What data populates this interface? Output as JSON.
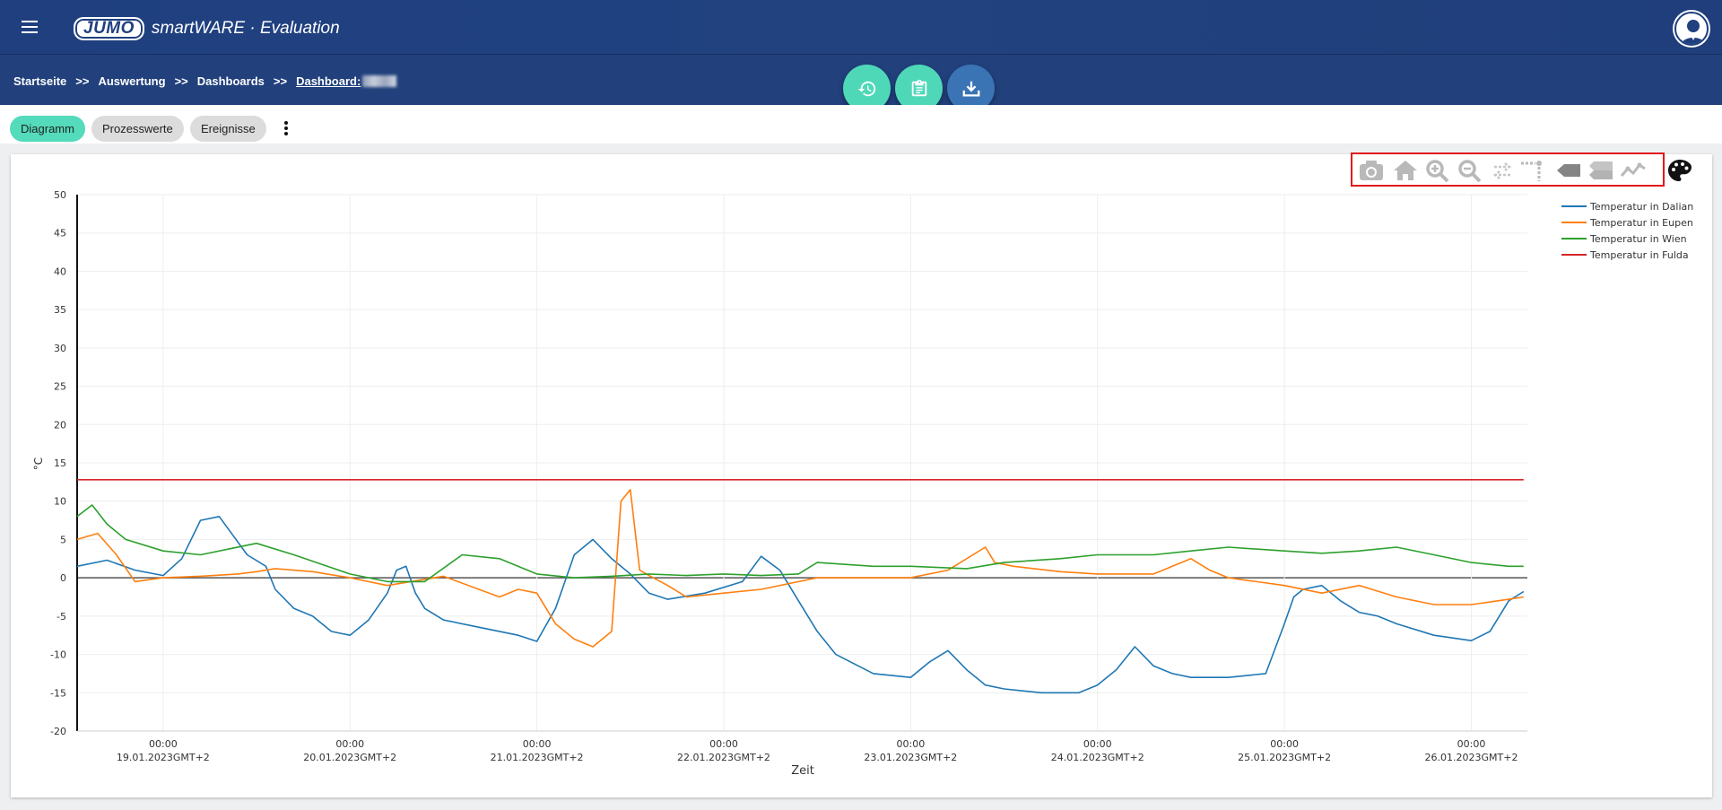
{
  "header": {
    "brand_logo": "JUMO",
    "product_name": "smartWARE · Evaluation",
    "icons": {
      "menu": "menu-icon",
      "user": "user-avatar-icon"
    }
  },
  "breadcrumb": {
    "items": [
      "Startseite",
      "Auswertung",
      "Dashboards"
    ],
    "current": "Dashboard:",
    "separator": ">>"
  },
  "fab_buttons": [
    "history-icon",
    "clipboard-icon",
    "download-icon"
  ],
  "tabs": [
    {
      "label": "Diagramm",
      "active": true
    },
    {
      "label": "Prozesswerte",
      "active": false
    },
    {
      "label": "Ereignisse",
      "active": false
    }
  ],
  "toolbar_icons": [
    "camera-icon",
    "home-icon",
    "zoom-in-icon",
    "zoom-out-icon",
    "compare-icon",
    "spike-lines-icon",
    "closest-hover-icon",
    "compare-hover-icon",
    "toggle-lines-icon",
    "palette-icon"
  ],
  "colors": {
    "accent": "#53dbbb",
    "header": "#21407c",
    "highlight": "#e1181b"
  },
  "chart_data": {
    "type": "line",
    "xlabel": "Zeit",
    "ylabel": "°C",
    "ylim": [
      -20,
      50
    ],
    "yticks": [
      50,
      45,
      40,
      35,
      30,
      25,
      20,
      15,
      10,
      5,
      0,
      -5,
      -10,
      -15,
      -20
    ],
    "xticks": [
      {
        "time": "00:00",
        "date": "19.01.2023GMT+2"
      },
      {
        "time": "00:00",
        "date": "20.01.2023GMT+2"
      },
      {
        "time": "00:00",
        "date": "21.01.2023GMT+2"
      },
      {
        "time": "00:00",
        "date": "22.01.2023GMT+2"
      },
      {
        "time": "00:00",
        "date": "23.01.2023GMT+2"
      },
      {
        "time": "00:00",
        "date": "24.01.2023GMT+2"
      },
      {
        "time": "00:00",
        "date": "25.01.2023GMT+2"
      },
      {
        "time": "00:00",
        "date": "26.01.2023GMT+2"
      }
    ],
    "x_range_days": [
      -0.46,
      7.3
    ],
    "legend_position": "top-right",
    "grid": true,
    "series": [
      {
        "name": "Temperatur in Dalian",
        "color": "#1f77b4",
        "x": [
          -0.46,
          -0.3,
          -0.15,
          0.0,
          0.1,
          0.2,
          0.3,
          0.45,
          0.55,
          0.6,
          0.7,
          0.8,
          0.9,
          1.0,
          1.1,
          1.2,
          1.25,
          1.3,
          1.35,
          1.4,
          1.5,
          1.7,
          1.9,
          2.0,
          2.1,
          2.2,
          2.3,
          2.4,
          2.5,
          2.6,
          2.7,
          2.9,
          3.1,
          3.2,
          3.3,
          3.4,
          3.5,
          3.6,
          3.8,
          4.0,
          4.1,
          4.2,
          4.3,
          4.4,
          4.5,
          4.7,
          4.9,
          5.0,
          5.1,
          5.2,
          5.3,
          5.4,
          5.5,
          5.7,
          5.9,
          6.0,
          6.05,
          6.1,
          6.2,
          6.3,
          6.4,
          6.5,
          6.6,
          6.8,
          7.0,
          7.1,
          7.2,
          7.28
        ],
        "y": [
          1.5,
          2.3,
          1.0,
          0.3,
          2.5,
          7.5,
          8.0,
          3.0,
          1.5,
          -1.5,
          -4.0,
          -5.0,
          -7.0,
          -7.5,
          -5.5,
          -2.0,
          1.0,
          1.5,
          -2.0,
          -4.0,
          -5.5,
          -6.5,
          -7.5,
          -8.3,
          -4.0,
          3.0,
          5.0,
          2.5,
          0.5,
          -2.0,
          -2.8,
          -2.0,
          -0.5,
          2.8,
          1.0,
          -3.0,
          -7.0,
          -10.0,
          -12.5,
          -13.0,
          -11.0,
          -9.5,
          -12.0,
          -14.0,
          -14.5,
          -15.0,
          -15.0,
          -14.0,
          -12.0,
          -9.0,
          -11.5,
          -12.5,
          -13.0,
          -13.0,
          -12.5,
          -6.0,
          -2.5,
          -1.5,
          -1.0,
          -3.0,
          -4.5,
          -5.0,
          -6.0,
          -7.5,
          -8.2,
          -7.0,
          -3.0,
          -1.8
        ]
      },
      {
        "name": "Temperatur in Eupen",
        "color": "#ff7f0e",
        "x": [
          -0.46,
          -0.35,
          -0.25,
          -0.15,
          0.0,
          0.2,
          0.4,
          0.5,
          0.6,
          0.8,
          1.0,
          1.2,
          1.5,
          1.8,
          1.9,
          2.0,
          2.1,
          2.2,
          2.3,
          2.4,
          2.45,
          2.5,
          2.55,
          2.6,
          2.7,
          2.8,
          3.0,
          3.2,
          3.5,
          3.8,
          4.0,
          4.2,
          4.4,
          4.45,
          4.55,
          4.8,
          5.0,
          5.3,
          5.5,
          5.6,
          5.7,
          6.0,
          6.2,
          6.4,
          6.6,
          6.8,
          7.0,
          7.2,
          7.28
        ],
        "y": [
          5.0,
          5.8,
          3.0,
          -0.5,
          0.0,
          0.2,
          0.5,
          0.8,
          1.2,
          0.8,
          0.0,
          -1.0,
          0.2,
          -2.5,
          -1.5,
          -2.0,
          -6.0,
          -8.0,
          -9.0,
          -7.0,
          10.0,
          11.5,
          1.0,
          0.3,
          -1.0,
          -2.5,
          -2.0,
          -1.5,
          0.0,
          0.0,
          0.0,
          1.0,
          4.0,
          2.0,
          1.5,
          0.8,
          0.5,
          0.5,
          2.5,
          1.0,
          0.0,
          -1.0,
          -2.0,
          -1.0,
          -2.5,
          -3.5,
          -3.5,
          -2.8,
          -2.5
        ]
      },
      {
        "name": "Temperatur in Wien",
        "color": "#2ca02c",
        "x": [
          -0.46,
          -0.38,
          -0.3,
          -0.2,
          0.0,
          0.2,
          0.5,
          0.7,
          1.0,
          1.2,
          1.4,
          1.6,
          1.8,
          2.0,
          2.2,
          2.4,
          2.6,
          2.8,
          3.0,
          3.2,
          3.4,
          3.5,
          3.8,
          4.0,
          4.3,
          4.5,
          4.8,
          5.0,
          5.3,
          5.5,
          5.7,
          6.0,
          6.2,
          6.4,
          6.6,
          6.8,
          7.0,
          7.2,
          7.28
        ],
        "y": [
          8.0,
          9.5,
          7.0,
          5.0,
          3.5,
          3.0,
          4.5,
          3.0,
          0.5,
          -0.5,
          -0.5,
          3.0,
          2.5,
          0.5,
          0.0,
          0.2,
          0.5,
          0.3,
          0.5,
          0.3,
          0.5,
          2.0,
          1.5,
          1.5,
          1.2,
          2.0,
          2.5,
          3.0,
          3.0,
          3.5,
          4.0,
          3.5,
          3.2,
          3.5,
          4.0,
          3.0,
          2.0,
          1.5,
          1.5
        ]
      },
      {
        "name": "Temperatur in Fulda",
        "color": "#d62728",
        "x": [
          -0.46,
          7.28
        ],
        "y": [
          12.8,
          12.8
        ]
      }
    ]
  }
}
